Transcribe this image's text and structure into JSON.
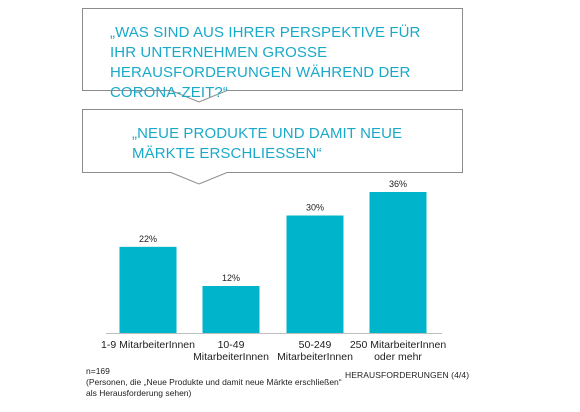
{
  "callouts": {
    "question": "„WAS SIND AUS IHRER PERSPEKTIVE FÜR IHR UNTERNEHMEN GROSSE HERAUSFORDERUNGEN WÄHREND DER CORONA-ZEIT?“",
    "answer": "„NEUE PRODUKTE UND DAMIT NEUE MÄRKTE ERSCHLIESSEN“"
  },
  "colors": {
    "accent_text": "#1aa9c9",
    "bar": "#00b4cc",
    "callout_border": "#8c8c8c"
  },
  "chart_data": {
    "type": "bar",
    "categories": [
      [
        "1-9 MitarbeiterInnen"
      ],
      [
        "10-49",
        "MitarbeiterInnen"
      ],
      [
        "50-249",
        "MitarbeiterInnen"
      ],
      [
        "250 MitarbeiterInnen",
        "oder mehr"
      ]
    ],
    "values": [
      22,
      12,
      30,
      36
    ],
    "value_labels": [
      "22%",
      "12%",
      "30%",
      "36%"
    ],
    "unit": "%",
    "ylim": [
      0,
      36
    ]
  },
  "footnote": {
    "n": "n=169",
    "line1": "(Personen, die „Neue Produkte und damit neue Märkte erschließen“",
    "line2": "als Herausforderung sehen)"
  },
  "footer_right": "HERAUSFORDERUNGEN  (4/4)"
}
